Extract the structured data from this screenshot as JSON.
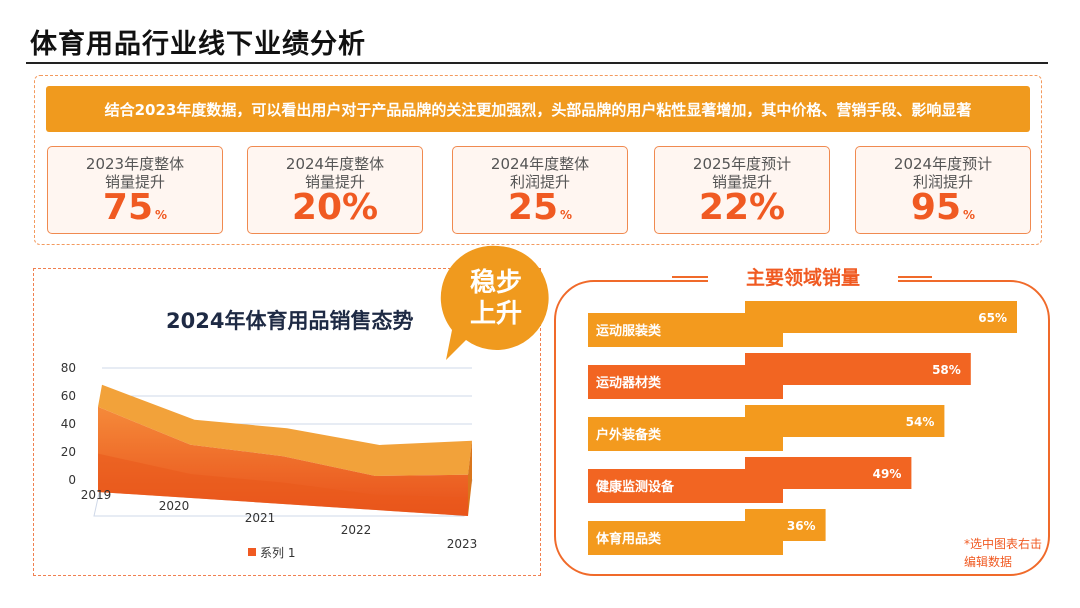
{
  "page": {
    "title": "体育用品行业线下业绩分析"
  },
  "banner": {
    "text": "结合2023年度数据，可以看出用户对于产品品牌的关注更加强烈，头部品牌的用户粘性显著增加，其中价格、营销手段、影响显著"
  },
  "stats": [
    {
      "label": "2023年度整体\n销量提升",
      "value": "75",
      "unit": "%"
    },
    {
      "label": "2024年度整体\n销量提升",
      "value": "20%",
      "unit": ""
    },
    {
      "label": "2024年度整体\n利润提升",
      "value": "25",
      "unit": "%"
    },
    {
      "label": "2025年度预计\n销量提升",
      "value": "22%",
      "unit": ""
    },
    {
      "label": "2024年度预计\n利润提升",
      "value": "95",
      "unit": "%"
    }
  ],
  "bubble": {
    "line1": "稳步",
    "line2": "上升"
  },
  "categories_panel": {
    "title": "主要领域销量"
  },
  "note": {
    "text": "*选中图表右击编辑数据"
  },
  "colors": {
    "accent": "#f05a22",
    "orange": "#f09a1e",
    "banner": "#f09a1e"
  },
  "chart_data": [
    {
      "type": "area",
      "title": "2024年体育用品销售态势",
      "x": [
        "2019",
        "2020",
        "2021",
        "2022",
        "2023"
      ],
      "ylim": [
        0,
        80
      ],
      "yticks": [
        0,
        20,
        40,
        60,
        80
      ],
      "series": [
        {
          "name": "系列 1",
          "values": [
            68,
            43,
            37,
            25,
            28
          ]
        }
      ],
      "style": "3d",
      "legend_position": "bottom",
      "grid": true
    },
    {
      "type": "bar",
      "orientation": "horizontal",
      "categories": [
        "运动服装类",
        "运动器材类",
        "户外装备类",
        "健康监测设备",
        "体育用品类"
      ],
      "values": [
        65,
        58,
        54,
        49,
        36
      ],
      "value_suffix": "%",
      "bar_colors": [
        "#f39a1e",
        "#f26522",
        "#f39a1e",
        "#f26522",
        "#f39a1e"
      ]
    }
  ]
}
